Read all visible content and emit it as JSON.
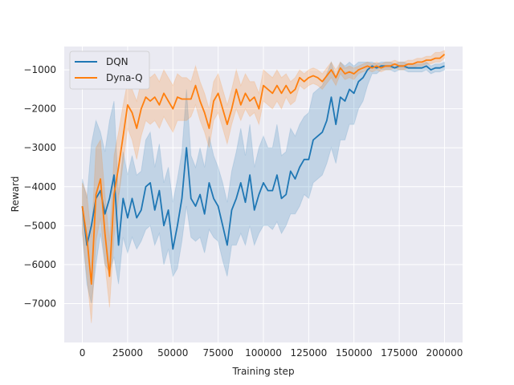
{
  "chart_data": {
    "type": "line",
    "title": "",
    "xlabel": "Training step",
    "ylabel": "Reward",
    "xlim": [
      -10000,
      210000
    ],
    "ylim": [
      -8000,
      -400
    ],
    "grid": true,
    "legend_position": "top-left",
    "x_ticks": [
      0,
      25000,
      50000,
      75000,
      100000,
      125000,
      150000,
      175000,
      200000
    ],
    "x_tick_labels": [
      "0",
      "25000",
      "50000",
      "75000",
      "100000",
      "125000",
      "150000",
      "175000",
      "200000"
    ],
    "y_ticks": [
      -7000,
      -6000,
      -5000,
      -4000,
      -3000,
      -2000,
      -1000
    ],
    "y_tick_labels": [
      "−7000",
      "−6000",
      "−5000",
      "−4000",
      "−3000",
      "−2000",
      "−1000"
    ],
    "colors": {
      "background": "#eaeaf2",
      "grid": "#ffffff",
      "DQN": "#1f77b4",
      "Dyna-Q": "#ff7f0e"
    },
    "series": [
      {
        "name": "DQN",
        "x": [
          0,
          2500,
          5000,
          7500,
          10000,
          12500,
          15000,
          17500,
          20000,
          22500,
          25000,
          27500,
          30000,
          32500,
          35000,
          37500,
          40000,
          42500,
          45000,
          47500,
          50000,
          52500,
          55000,
          57500,
          60000,
          62500,
          65000,
          67500,
          70000,
          72500,
          75000,
          77500,
          80000,
          82500,
          85000,
          87500,
          90000,
          92500,
          95000,
          97500,
          100000,
          102500,
          105000,
          107500,
          110000,
          112500,
          115000,
          117500,
          120000,
          122500,
          125000,
          127500,
          130000,
          132500,
          135000,
          137500,
          140000,
          142500,
          145000,
          147500,
          150000,
          152500,
          155000,
          157500,
          160000,
          162500,
          165000,
          167500,
          170000,
          172500,
          175000,
          177500,
          180000,
          182500,
          185000,
          187500,
          190000,
          192500,
          195000,
          197500,
          200000
        ],
        "values": [
          -4500,
          -5500,
          -5000,
          -4300,
          -4100,
          -4700,
          -4300,
          -3700,
          -5500,
          -4300,
          -4800,
          -4300,
          -4800,
          -4600,
          -4000,
          -3900,
          -4600,
          -4100,
          -5000,
          -4600,
          -5600,
          -5000,
          -4300,
          -3000,
          -4300,
          -4500,
          -4200,
          -4700,
          -3900,
          -4300,
          -4500,
          -5000,
          -5500,
          -4600,
          -4300,
          -3900,
          -4400,
          -3700,
          -4600,
          -4200,
          -3900,
          -4100,
          -4100,
          -3700,
          -4300,
          -4200,
          -3600,
          -3800,
          -3500,
          -3300,
          -3300,
          -2800,
          -2700,
          -2600,
          -2300,
          -1700,
          -2400,
          -1700,
          -1800,
          -1500,
          -1600,
          -1300,
          -1200,
          -1000,
          -900,
          -950,
          -900,
          -900,
          -900,
          -950,
          -900,
          -900,
          -950,
          -950,
          -950,
          -950,
          -900,
          -1000,
          -950,
          -950,
          -900
        ],
        "lower": [
          -5200,
          -6500,
          -7000,
          -6000,
          -5200,
          -6000,
          -6200,
          -5800,
          -6500,
          -5300,
          -5700,
          -5300,
          -5600,
          -5400,
          -5100,
          -5000,
          -5500,
          -5200,
          -6000,
          -5600,
          -6300,
          -6100,
          -5400,
          -4500,
          -5300,
          -5400,
          -5300,
          -5700,
          -5100,
          -5300,
          -5400,
          -5900,
          -6300,
          -5500,
          -5500,
          -5200,
          -5500,
          -5000,
          -5500,
          -5200,
          -5000,
          -5000,
          -5100,
          -4900,
          -5200,
          -5000,
          -4700,
          -4700,
          -4500,
          -4200,
          -4300,
          -3900,
          -3800,
          -3700,
          -3400,
          -3000,
          -3400,
          -2800,
          -2800,
          -2400,
          -2400,
          -2000,
          -1800,
          -1400,
          -1100,
          -1100,
          -1000,
          -1000,
          -1000,
          -1050,
          -1000,
          -1000,
          -1050,
          -1050,
          -1050,
          -1050,
          -1000,
          -1100,
          -1050,
          -1050,
          -1000
        ],
        "upper": [
          -3800,
          -4300,
          -2900,
          -2300,
          -2600,
          -3100,
          -2300,
          -1800,
          -4200,
          -3100,
          -3700,
          -3200,
          -3700,
          -3600,
          -2800,
          -2600,
          -3500,
          -2900,
          -3900,
          -3500,
          -4400,
          -3800,
          -3100,
          -1500,
          -3200,
          -3500,
          -3000,
          -3500,
          -2700,
          -3200,
          -3500,
          -3900,
          -4400,
          -3600,
          -3100,
          -2500,
          -3200,
          -2400,
          -3500,
          -3000,
          -2700,
          -3000,
          -3000,
          -2400,
          -3200,
          -3100,
          -2500,
          -2700,
          -2400,
          -2200,
          -2100,
          -1600,
          -1500,
          -1400,
          -1100,
          -800,
          -1200,
          -800,
          -900,
          -800,
          -900,
          -800,
          -800,
          -800,
          -800,
          -850,
          -800,
          -800,
          -800,
          -850,
          -800,
          -800,
          -850,
          -850,
          -850,
          -850,
          -800,
          -900,
          -850,
          -850,
          -800
        ]
      },
      {
        "name": "Dyna-Q",
        "x": [
          0,
          2500,
          5000,
          7500,
          10000,
          12500,
          15000,
          17500,
          20000,
          22500,
          25000,
          27500,
          30000,
          32500,
          35000,
          37500,
          40000,
          42500,
          45000,
          47500,
          50000,
          52500,
          55000,
          57500,
          60000,
          62500,
          65000,
          67500,
          70000,
          72500,
          75000,
          77500,
          80000,
          82500,
          85000,
          87500,
          90000,
          92500,
          95000,
          97500,
          100000,
          102500,
          105000,
          107500,
          110000,
          112500,
          115000,
          117500,
          120000,
          122500,
          125000,
          127500,
          130000,
          132500,
          135000,
          137500,
          140000,
          142500,
          145000,
          147500,
          150000,
          152500,
          155000,
          157500,
          160000,
          162500,
          165000,
          167500,
          170000,
          172500,
          175000,
          177500,
          180000,
          182500,
          185000,
          187500,
          190000,
          192500,
          195000,
          197500,
          200000
        ],
        "values": [
          -4500,
          -5300,
          -6500,
          -4200,
          -3800,
          -5200,
          -6300,
          -4200,
          -3500,
          -2700,
          -1900,
          -2100,
          -2500,
          -2000,
          -1700,
          -1800,
          -1700,
          -1900,
          -1600,
          -1800,
          -2000,
          -1700,
          -1750,
          -1750,
          -1750,
          -1400,
          -1800,
          -2100,
          -2500,
          -1800,
          -1600,
          -2000,
          -2400,
          -2000,
          -1500,
          -1900,
          -1600,
          -1800,
          -1700,
          -2000,
          -1400,
          -1500,
          -1600,
          -1400,
          -1600,
          -1400,
          -1600,
          -1500,
          -1200,
          -1300,
          -1200,
          -1150,
          -1200,
          -1300,
          -1150,
          -1000,
          -1200,
          -950,
          -1100,
          -1050,
          -1100,
          -1000,
          -950,
          -900,
          -950,
          -900,
          -950,
          -900,
          -900,
          -850,
          -900,
          -900,
          -850,
          -850,
          -800,
          -800,
          -750,
          -750,
          -700,
          -700,
          -600
        ],
        "lower": [
          -5200,
          -6300,
          -7500,
          -5400,
          -4800,
          -6000,
          -7100,
          -5300,
          -4300,
          -3400,
          -2500,
          -2800,
          -3300,
          -2700,
          -2300,
          -2400,
          -2300,
          -2500,
          -2200,
          -2400,
          -2600,
          -2300,
          -2300,
          -2300,
          -2200,
          -1900,
          -2300,
          -2600,
          -3000,
          -2300,
          -2100,
          -2500,
          -2900,
          -2400,
          -2000,
          -2300,
          -2000,
          -2200,
          -2100,
          -2400,
          -1800,
          -1900,
          -2000,
          -1800,
          -2000,
          -1700,
          -1900,
          -1800,
          -1400,
          -1500,
          -1400,
          -1350,
          -1400,
          -1500,
          -1350,
          -1200,
          -1400,
          -1100,
          -1250,
          -1200,
          -1250,
          -1100,
          -1050,
          -1000,
          -1050,
          -1000,
          -1050,
          -1000,
          -1000,
          -950,
          -1000,
          -1000,
          -950,
          -950,
          -900,
          -900,
          -850,
          -850,
          -800,
          -800,
          -700
        ],
        "upper": [
          -3900,
          -4200,
          -5300,
          -3000,
          -2800,
          -4200,
          -5400,
          -3200,
          -2600,
          -1900,
          -1300,
          -1500,
          -1800,
          -1300,
          -1100,
          -1200,
          -1100,
          -1300,
          -1000,
          -1200,
          -1400,
          -1100,
          -1200,
          -1200,
          -1300,
          -900,
          -1300,
          -1600,
          -2000,
          -1300,
          -1100,
          -1500,
          -1900,
          -1500,
          -1000,
          -1400,
          -1100,
          -1300,
          -1300,
          -1600,
          -1000,
          -1100,
          -1200,
          -1000,
          -1200,
          -1100,
          -1300,
          -1200,
          -1000,
          -1100,
          -1000,
          -950,
          -1000,
          -1100,
          -950,
          -800,
          -1000,
          -800,
          -950,
          -900,
          -950,
          -900,
          -850,
          -800,
          -850,
          -800,
          -850,
          -800,
          -800,
          -750,
          -800,
          -800,
          -750,
          -750,
          -700,
          -700,
          -650,
          -650,
          -550,
          -550,
          -500
        ]
      }
    ]
  }
}
